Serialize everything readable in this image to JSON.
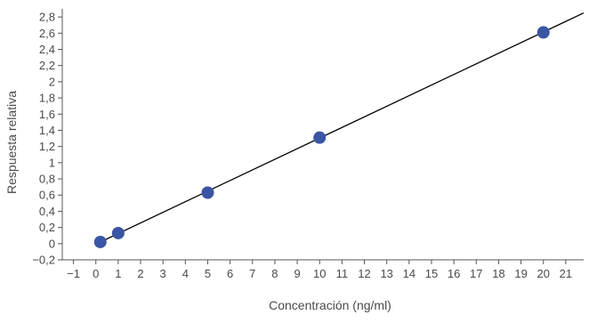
{
  "chart_data": {
    "type": "scatter",
    "title": "",
    "xlabel": "Concentración (ng/ml)",
    "ylabel": "Respuesta relativa",
    "x_ticks": [
      "−1",
      "0",
      "1",
      "2",
      "3",
      "4",
      "5",
      "6",
      "7",
      "8",
      "9",
      "10",
      "11",
      "12",
      "13",
      "14",
      "15",
      "16",
      "17",
      "18",
      "19",
      "20",
      "21"
    ],
    "y_ticks": [
      "−0,2",
      "0",
      "0,2",
      "0,4",
      "0,6",
      "0,8",
      "1",
      "1,2",
      "1,4",
      "1,6",
      "1,8",
      "2",
      "2,2",
      "2,4",
      "2,6",
      "2,8"
    ],
    "xlim": [
      -1.5,
      21.8
    ],
    "ylim": [
      -0.2,
      2.9
    ],
    "grid": false,
    "series": [
      {
        "type": "scatter",
        "color": "#3a55a4",
        "x": [
          0.2,
          1,
          5,
          10,
          20
        ],
        "y": [
          0.02,
          0.13,
          0.63,
          1.31,
          2.61
        ]
      },
      {
        "type": "line",
        "color": "#000000",
        "x": [
          0.2,
          21.8
        ],
        "y": [
          0.02,
          2.85
        ]
      }
    ]
  }
}
